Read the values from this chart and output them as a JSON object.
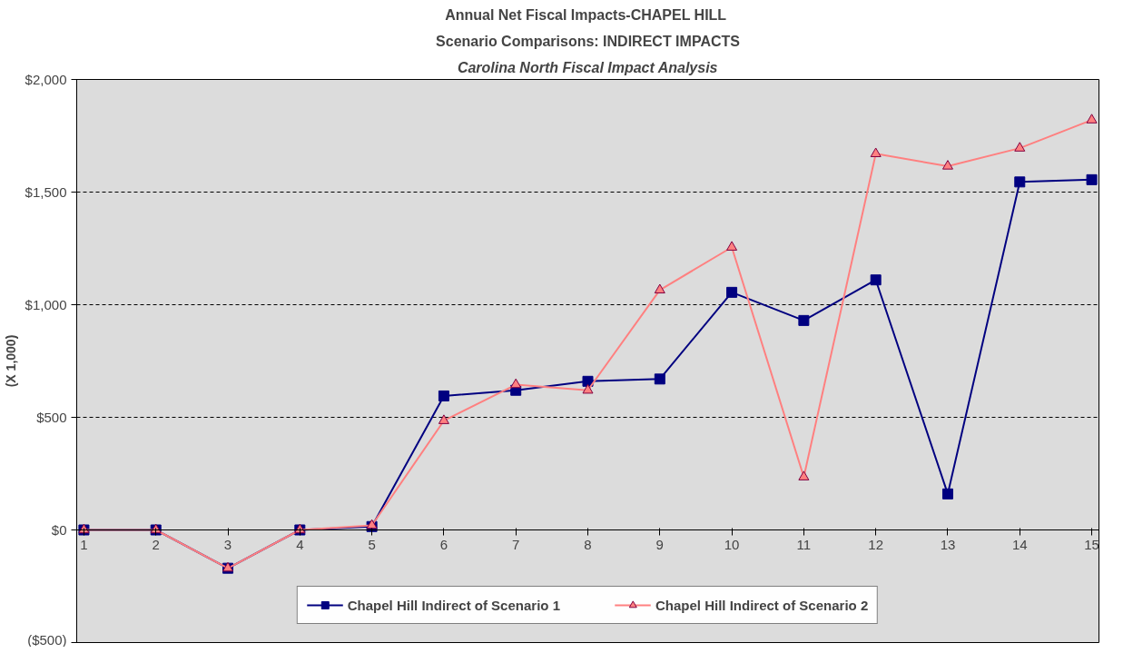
{
  "chart_data": {
    "type": "line",
    "title": "Annual Net Fiscal Impacts-CHAPEL  HILL",
    "subtitle": "Scenario Comparisons: INDIRECT IMPACTS",
    "annotations": [
      "Carolina North Fiscal Impact Analysis"
    ],
    "ylabel": "(X 1,000)",
    "x": [
      1,
      2,
      3,
      4,
      5,
      6,
      7,
      8,
      9,
      10,
      11,
      12,
      13,
      14,
      15
    ],
    "xlim": [
      0.9,
      15.1
    ],
    "xticks": [
      1,
      2,
      3,
      4,
      5,
      6,
      7,
      8,
      9,
      10,
      11,
      12,
      13,
      14,
      15
    ],
    "ylim": [
      -500,
      2000
    ],
    "yticks": [
      {
        "value": -500,
        "label": "($500)"
      },
      {
        "value": 0,
        "label": "$0"
      },
      {
        "value": 500,
        "label": "$500"
      },
      {
        "value": 1000,
        "label": "$1,000"
      },
      {
        "value": 1500,
        "label": "$1,500"
      },
      {
        "value": 2000,
        "label": "$2,000"
      }
    ],
    "grid": "y",
    "legend": "bottom",
    "line_style": "solid",
    "series": [
      {
        "name": "Chapel Hill Indirect of Scenario 1",
        "color": "#000080",
        "marker": "square",
        "values": [
          0,
          0,
          -170,
          0,
          15,
          595,
          620,
          660,
          670,
          1055,
          930,
          1110,
          160,
          1545,
          1555
        ]
      },
      {
        "name": "Chapel Hill Indirect of Scenario 2",
        "color": "#ff8080",
        "marker": "triangle",
        "values": [
          0,
          0,
          -170,
          0,
          20,
          485,
          645,
          620,
          1065,
          1255,
          235,
          1670,
          1615,
          1695,
          1820
        ]
      }
    ]
  }
}
